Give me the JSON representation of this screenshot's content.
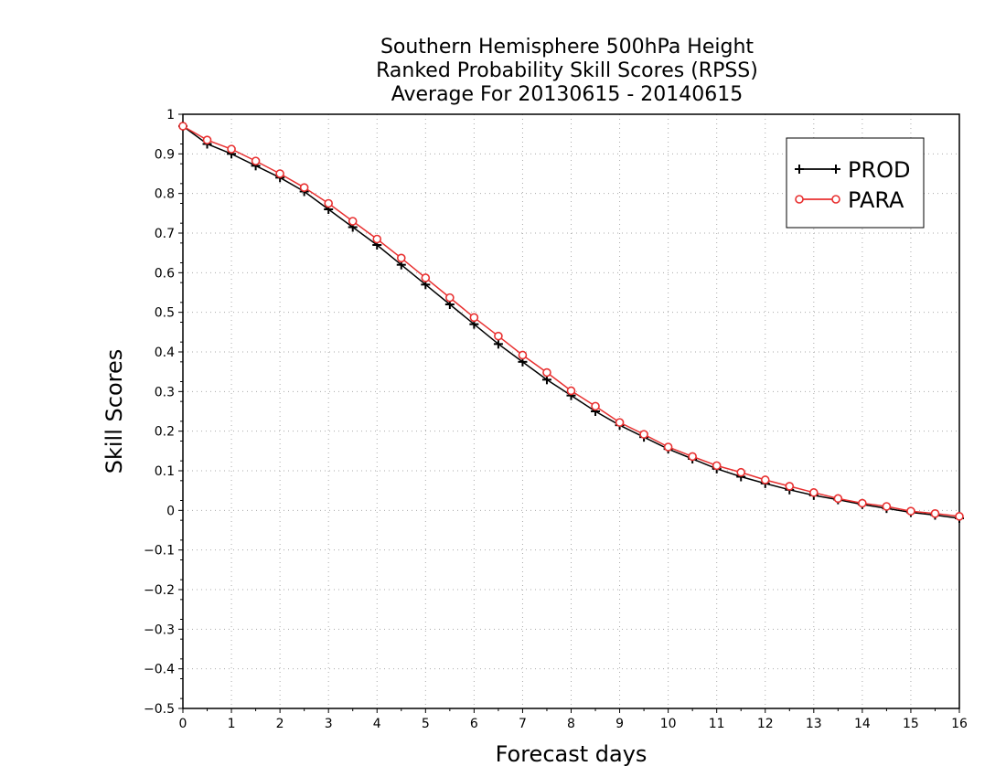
{
  "chart_data": {
    "type": "line",
    "title": [
      "Southern Hemisphere 500hPa Height",
      "Ranked Probability Skill Scores (RPSS)",
      "Average For 20130615 - 20140615"
    ],
    "xlabel": "Forecast days",
    "ylabel": "Skill Scores",
    "xlim": [
      0,
      16
    ],
    "ylim": [
      -0.5,
      1
    ],
    "xticks": [
      0,
      1,
      2,
      3,
      4,
      5,
      6,
      7,
      8,
      9,
      10,
      11,
      12,
      13,
      14,
      15,
      16
    ],
    "yticks": [
      1,
      0.9,
      0.8,
      0.7,
      0.6,
      0.5,
      0.4,
      0.3,
      0.2,
      0.1,
      0,
      -0.1,
      -0.2,
      -0.3,
      -0.4,
      -0.5
    ],
    "grid": true,
    "legend": "top-right",
    "x": [
      0,
      0.5,
      1,
      1.5,
      2,
      2.5,
      3,
      3.5,
      4,
      4.5,
      5,
      5.5,
      6,
      6.5,
      7,
      7.5,
      8,
      8.5,
      9,
      9.5,
      10,
      10.5,
      11,
      11.5,
      12,
      12.5,
      13,
      13.5,
      14,
      14.5,
      15,
      15.5,
      16
    ],
    "series": [
      {
        "name": "PROD",
        "color": "#000000",
        "marker": "plus",
        "values": [
          0.97,
          0.925,
          0.9,
          0.87,
          0.84,
          0.805,
          0.76,
          0.715,
          0.67,
          0.62,
          0.57,
          0.52,
          0.47,
          0.42,
          0.375,
          0.33,
          0.29,
          0.25,
          0.215,
          0.185,
          0.155,
          0.13,
          0.105,
          0.085,
          0.068,
          0.052,
          0.038,
          0.027,
          0.015,
          0.005,
          -0.005,
          -0.012,
          -0.02
        ]
      },
      {
        "name": "PARA",
        "color": "#e83030",
        "marker": "circle",
        "values": [
          0.97,
          0.935,
          0.912,
          0.882,
          0.85,
          0.815,
          0.775,
          0.73,
          0.685,
          0.637,
          0.587,
          0.537,
          0.487,
          0.44,
          0.392,
          0.348,
          0.302,
          0.263,
          0.222,
          0.192,
          0.16,
          0.136,
          0.113,
          0.096,
          0.077,
          0.061,
          0.045,
          0.03,
          0.018,
          0.01,
          -0.002,
          -0.008,
          -0.015
        ]
      }
    ]
  }
}
